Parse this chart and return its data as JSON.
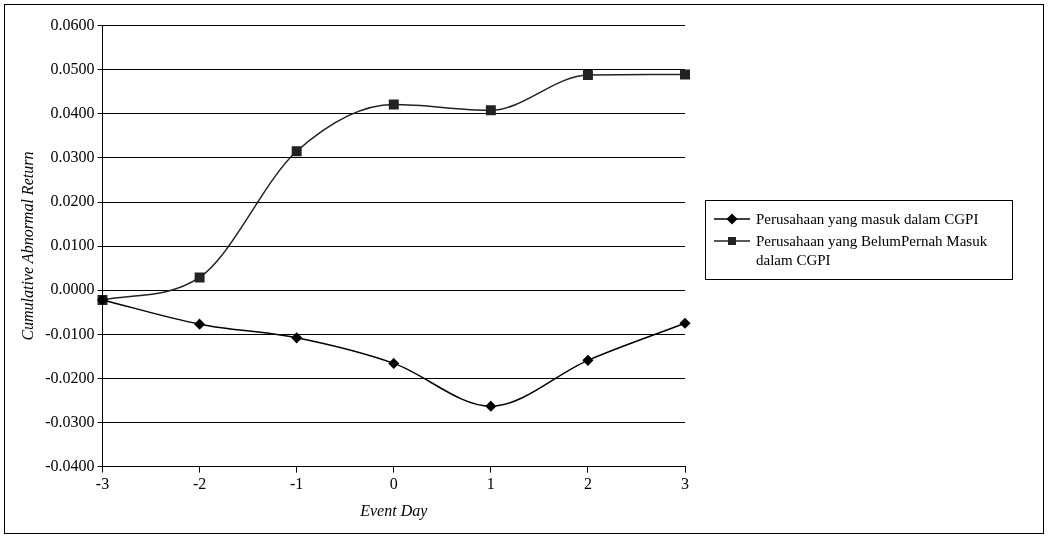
{
  "chart_data": {
    "type": "line",
    "xlabel": "Event Day",
    "ylabel": "Cumulative Abnormal Return",
    "categories": [
      "-3",
      "-2",
      "-1",
      "0",
      "1",
      "2",
      "3"
    ],
    "series": [
      {
        "name": "Perusahaan yang masuk dalam CGPI",
        "color": "#000000",
        "marker": "diamond",
        "values": [
          -0.0022,
          -0.0077,
          -0.0108,
          -0.0166,
          -0.0263,
          -0.0159,
          -0.0075
        ]
      },
      {
        "name": "Perusahaan yang BelumPernah Masuk dalam CGPI",
        "color": "#222222",
        "marker": "square",
        "values": [
          -0.0022,
          0.0029,
          0.0315,
          0.0421,
          0.0408,
          0.0488,
          0.0489
        ]
      }
    ],
    "ylim": [
      -0.04,
      0.06
    ],
    "yticks": [
      {
        "value": -0.04,
        "label": "-0.0400"
      },
      {
        "value": -0.03,
        "label": "-0.0300"
      },
      {
        "value": -0.02,
        "label": "-0.0200"
      },
      {
        "value": -0.01,
        "label": "-0.0100"
      },
      {
        "value": 0,
        "label": "0.0000"
      },
      {
        "value": 0.01,
        "label": "0.0100"
      },
      {
        "value": 0.02,
        "label": "0.0200"
      },
      {
        "value": 0.03,
        "label": "0.0300"
      },
      {
        "value": 0.04,
        "label": "0.0400"
      },
      {
        "value": 0.05,
        "label": "0.0500"
      },
      {
        "value": 0.06,
        "label": "0.0600"
      }
    ],
    "grid": "y",
    "legend": "right",
    "line_style": "solid"
  }
}
